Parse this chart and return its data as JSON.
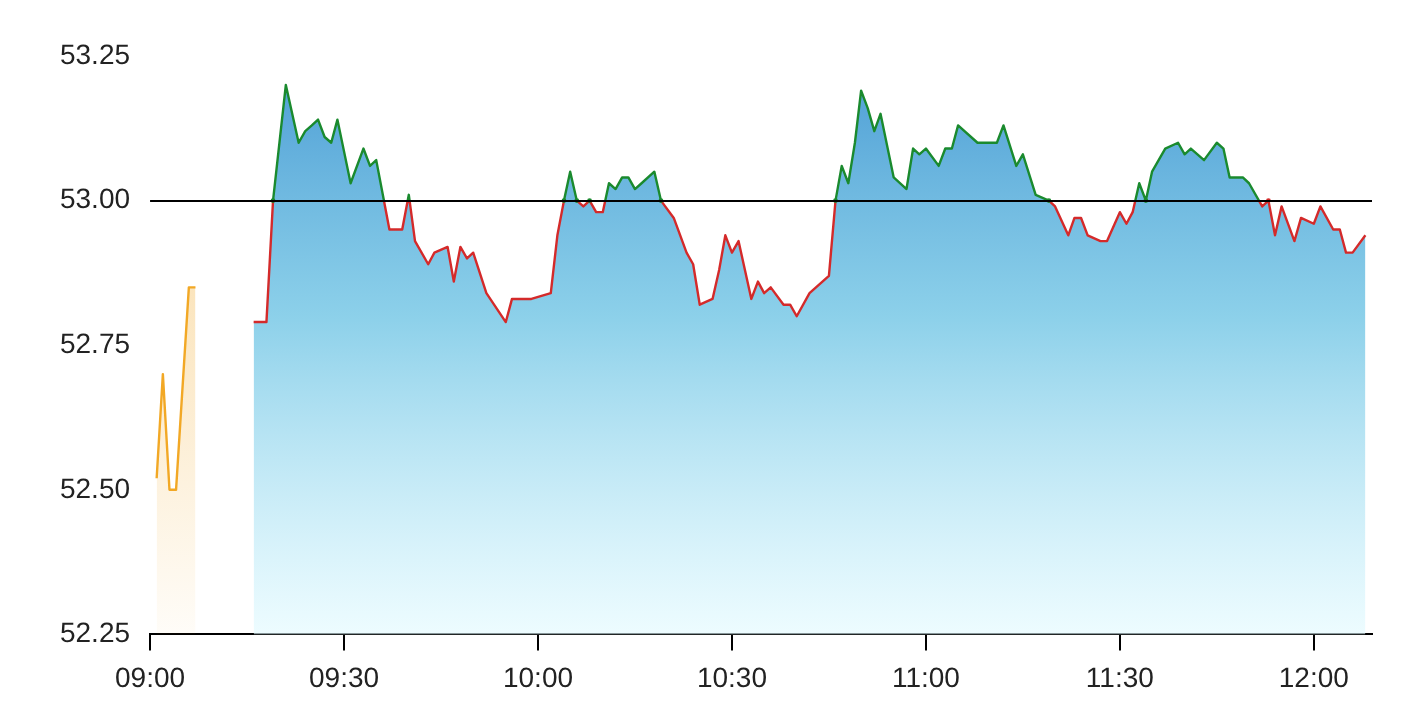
{
  "chart_data": {
    "type": "area",
    "xlim": [
      9,
      12.15
    ],
    "ylim": [
      52.25,
      53.25
    ],
    "xticks": [
      {
        "value": 9,
        "label": "09:00"
      },
      {
        "value": 9.5,
        "label": "09:30"
      },
      {
        "value": 10,
        "label": "10:00"
      },
      {
        "value": 10.5,
        "label": "10:30"
      },
      {
        "value": 11,
        "label": "11:00"
      },
      {
        "value": 11.5,
        "label": "11:30"
      },
      {
        "value": 12,
        "label": "12:00"
      }
    ],
    "yticks": [
      {
        "value": 52.25,
        "label": "52.25"
      },
      {
        "value": 52.5,
        "label": "52.50"
      },
      {
        "value": 52.75,
        "label": "52.75"
      },
      {
        "value": 53,
        "label": "53.00"
      },
      {
        "value": 53.25,
        "label": "53.25"
      }
    ],
    "grid": false,
    "legend": false,
    "marker": "none",
    "line_style": "solid",
    "ref_lines": [
      {
        "axis": "y",
        "value": 53,
        "color": "#000000"
      }
    ],
    "series": [
      {
        "type": "area",
        "color": "#f2a825",
        "x": [
          9.017,
          9.033,
          9.05,
          9.067,
          9.1,
          9.117
        ],
        "values": [
          52.52,
          52.7,
          52.5,
          52.5,
          52.85,
          52.85
        ]
      },
      {
        "type": "area",
        "color": "#4a9bd4",
        "x": [
          9.267,
          9.3,
          9.317,
          9.35,
          9.383,
          9.4,
          9.417,
          9.433,
          9.45,
          9.467,
          9.483,
          9.517,
          9.55,
          9.567,
          9.583,
          9.6,
          9.617,
          9.65,
          9.667,
          9.683,
          9.717,
          9.733,
          9.767,
          9.783,
          9.8,
          9.817,
          9.833,
          9.867,
          9.917,
          9.933,
          9.983,
          10.033,
          10.05,
          10.067,
          10.083,
          10.1,
          10.117,
          10.133,
          10.15,
          10.167,
          10.183,
          10.2,
          10.217,
          10.233,
          10.25,
          10.267,
          10.3,
          10.317,
          10.35,
          10.383,
          10.4,
          10.417,
          10.45,
          10.467,
          10.483,
          10.5,
          10.517,
          10.55,
          10.567,
          10.583,
          10.6,
          10.633,
          10.65,
          10.667,
          10.7,
          10.75,
          10.767,
          10.783,
          10.8,
          10.817,
          10.833,
          10.85,
          10.867,
          10.883,
          10.917,
          10.95,
          10.967,
          10.983,
          11,
          11.033,
          11.05,
          11.067,
          11.083,
          11.133,
          11.183,
          11.2,
          11.233,
          11.25,
          11.283,
          11.317,
          11.333,
          11.367,
          11.383,
          11.4,
          11.417,
          11.45,
          11.467,
          11.5,
          11.517,
          11.533,
          11.55,
          11.567,
          11.583,
          11.617,
          11.65,
          11.667,
          11.683,
          11.717,
          11.75,
          11.767,
          11.783,
          11.817,
          11.833,
          11.867,
          11.883,
          11.9,
          11.917,
          11.95,
          11.967,
          12,
          12.017,
          12.05,
          12.067,
          12.083,
          12.1,
          12.133
        ],
        "values": [
          52.79,
          52.79,
          53,
          53.2,
          53.1,
          53.12,
          53.13,
          53.14,
          53.11,
          53.1,
          53.14,
          53.03,
          53.09,
          53.06,
          53.07,
          53.01,
          52.95,
          52.95,
          53.01,
          52.93,
          52.89,
          52.91,
          52.92,
          52.86,
          52.92,
          52.9,
          52.91,
          52.84,
          52.79,
          52.83,
          52.83,
          52.84,
          52.94,
          53,
          53.05,
          53,
          52.99,
          53,
          52.98,
          52.98,
          53.03,
          53.02,
          53.04,
          53.04,
          53.02,
          53.03,
          53.05,
          53,
          52.97,
          52.91,
          52.89,
          52.82,
          52.83,
          52.88,
          52.94,
          52.91,
          52.93,
          52.83,
          52.86,
          52.84,
          52.85,
          52.82,
          52.82,
          52.8,
          52.84,
          52.87,
          53,
          53.06,
          53.03,
          53.1,
          53.19,
          53.16,
          53.12,
          53.15,
          53.04,
          53.02,
          53.09,
          53.08,
          53.09,
          53.06,
          53.09,
          53.09,
          53.13,
          53.1,
          53.1,
          53.13,
          53.06,
          53.08,
          53.01,
          53,
          52.99,
          52.94,
          52.97,
          52.97,
          52.94,
          52.93,
          52.93,
          52.98,
          52.96,
          52.98,
          53.03,
          53,
          53.05,
          53.09,
          53.1,
          53.08,
          53.09,
          53.07,
          53.1,
          53.09,
          53.04,
          53.04,
          53.03,
          52.99,
          53,
          52.94,
          52.99,
          52.93,
          52.97,
          52.96,
          52.99,
          52.95,
          52.95,
          52.91,
          52.91,
          52.94
        ],
        "colors": [
          "#d42a2a",
          "#d42a2a",
          "#1a8a2e",
          "#1a8a2e",
          "#1a8a2e",
          "#1a8a2e",
          "#1a8a2e",
          "#1a8a2e",
          "#1a8a2e",
          "#1a8a2e",
          "#1a8a2e",
          "#1a8a2e",
          "#1a8a2e",
          "#1a8a2e",
          "#1a8a2e",
          "#1a8a2e",
          "#d42a2a",
          "#d42a2a",
          "#1a8a2e",
          "#d42a2a",
          "#d42a2a",
          "#d42a2a",
          "#d42a2a",
          "#d42a2a",
          "#d42a2a",
          "#d42a2a",
          "#d42a2a",
          "#d42a2a",
          "#d42a2a",
          "#d42a2a",
          "#d42a2a",
          "#d42a2a",
          "#d42a2a",
          "#1a8a2e",
          "#1a8a2e",
          "#1a8a2e",
          "#d42a2a",
          "#1a8a2e",
          "#d42a2a",
          "#d42a2a",
          "#1a8a2e",
          "#1a8a2e",
          "#1a8a2e",
          "#1a8a2e",
          "#1a8a2e",
          "#1a8a2e",
          "#1a8a2e",
          "#1a8a2e",
          "#d42a2a",
          "#d42a2a",
          "#d42a2a",
          "#d42a2a",
          "#d42a2a",
          "#d42a2a",
          "#d42a2a",
          "#d42a2a",
          "#d42a2a",
          "#d42a2a",
          "#d42a2a",
          "#d42a2a",
          "#d42a2a",
          "#d42a2a",
          "#d42a2a",
          "#d42a2a",
          "#d42a2a",
          "#d42a2a",
          "#1a8a2e",
          "#1a8a2e",
          "#1a8a2e",
          "#1a8a2e",
          "#1a8a2e",
          "#1a8a2e",
          "#1a8a2e",
          "#1a8a2e",
          "#1a8a2e",
          "#1a8a2e",
          "#1a8a2e",
          "#1a8a2e",
          "#1a8a2e",
          "#1a8a2e",
          "#1a8a2e",
          "#1a8a2e",
          "#1a8a2e",
          "#1a8a2e",
          "#1a8a2e",
          "#1a8a2e",
          "#1a8a2e",
          "#1a8a2e",
          "#1a8a2e",
          "#1a8a2e",
          "#d42a2a",
          "#d42a2a",
          "#d42a2a",
          "#d42a2a",
          "#d42a2a",
          "#d42a2a",
          "#d42a2a",
          "#d42a2a",
          "#d42a2a",
          "#d42a2a",
          "#1a8a2e",
          "#1a8a2e",
          "#1a8a2e",
          "#1a8a2e",
          "#1a8a2e",
          "#1a8a2e",
          "#1a8a2e",
          "#1a8a2e",
          "#1a8a2e",
          "#1a8a2e",
          "#1a8a2e",
          "#1a8a2e",
          "#1a8a2e",
          "#d42a2a",
          "#d42a2a",
          "#d42a2a",
          "#d42a2a",
          "#d42a2a",
          "#d42a2a",
          "#d42a2a",
          "#d42a2a",
          "#d42a2a",
          "#d42a2a",
          "#d42a2a",
          "#d42a2a",
          "#d42a2a"
        ]
      }
    ]
  }
}
